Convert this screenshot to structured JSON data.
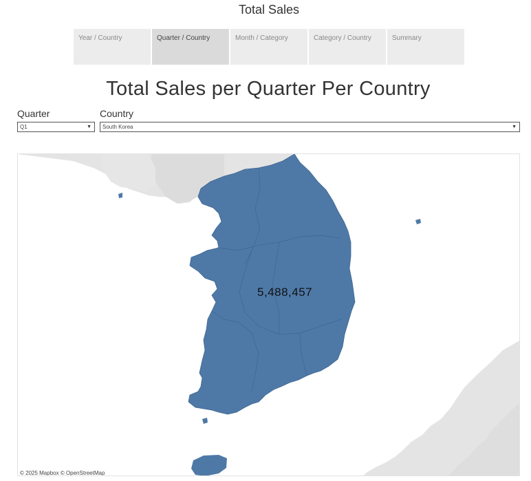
{
  "story": {
    "title": "Total Sales"
  },
  "tabs": [
    {
      "label": "Year / Country",
      "active": false
    },
    {
      "label": "Quarter / Country",
      "active": true
    },
    {
      "label": "Month / Category",
      "active": false
    },
    {
      "label": "Category / Country",
      "active": false
    },
    {
      "label": "Summary",
      "active": false
    }
  ],
  "sheet": {
    "title": "Total Sales per Quarter Per Country"
  },
  "filters": {
    "quarter": {
      "label": "Quarter",
      "value": "Q1"
    },
    "country": {
      "label": "Country",
      "value": "South Korea"
    }
  },
  "map": {
    "region_label": "South Korea",
    "value": "5,488,457",
    "fill_color": "#4e79a7",
    "attribution": "© 2025 Mapbox  © OpenStreetMap"
  }
}
